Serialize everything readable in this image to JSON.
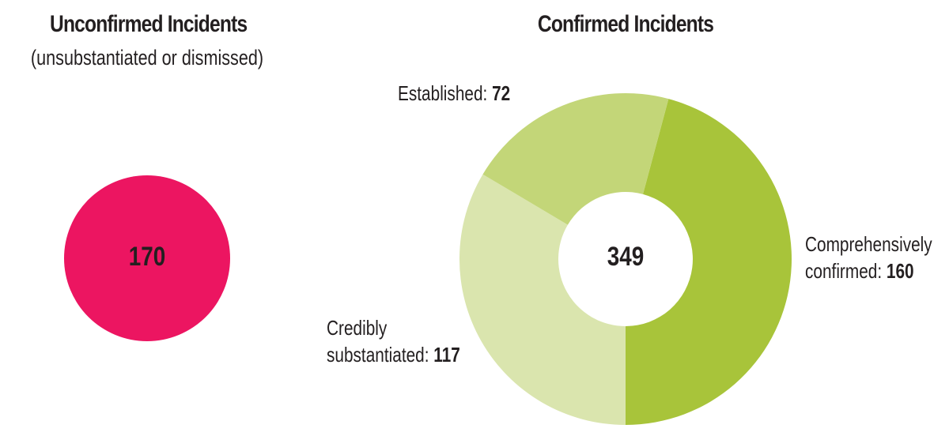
{
  "chart_data": [
    {
      "type": "circle",
      "title": "Unconfirmed Incidents",
      "subtitle": "(unsubstantiated or dismissed)",
      "values": [
        170
      ],
      "color": "#ec1561"
    },
    {
      "type": "donut",
      "title": "Confirmed Incidents",
      "total": 349,
      "categories": [
        "Comprehensively confirmed:",
        "Credibly substantiated:",
        "Established:"
      ],
      "values": [
        160,
        117,
        72
      ],
      "colors": [
        "#a8c43a",
        "#dae5ae",
        "#c3d678"
      ]
    }
  ]
}
